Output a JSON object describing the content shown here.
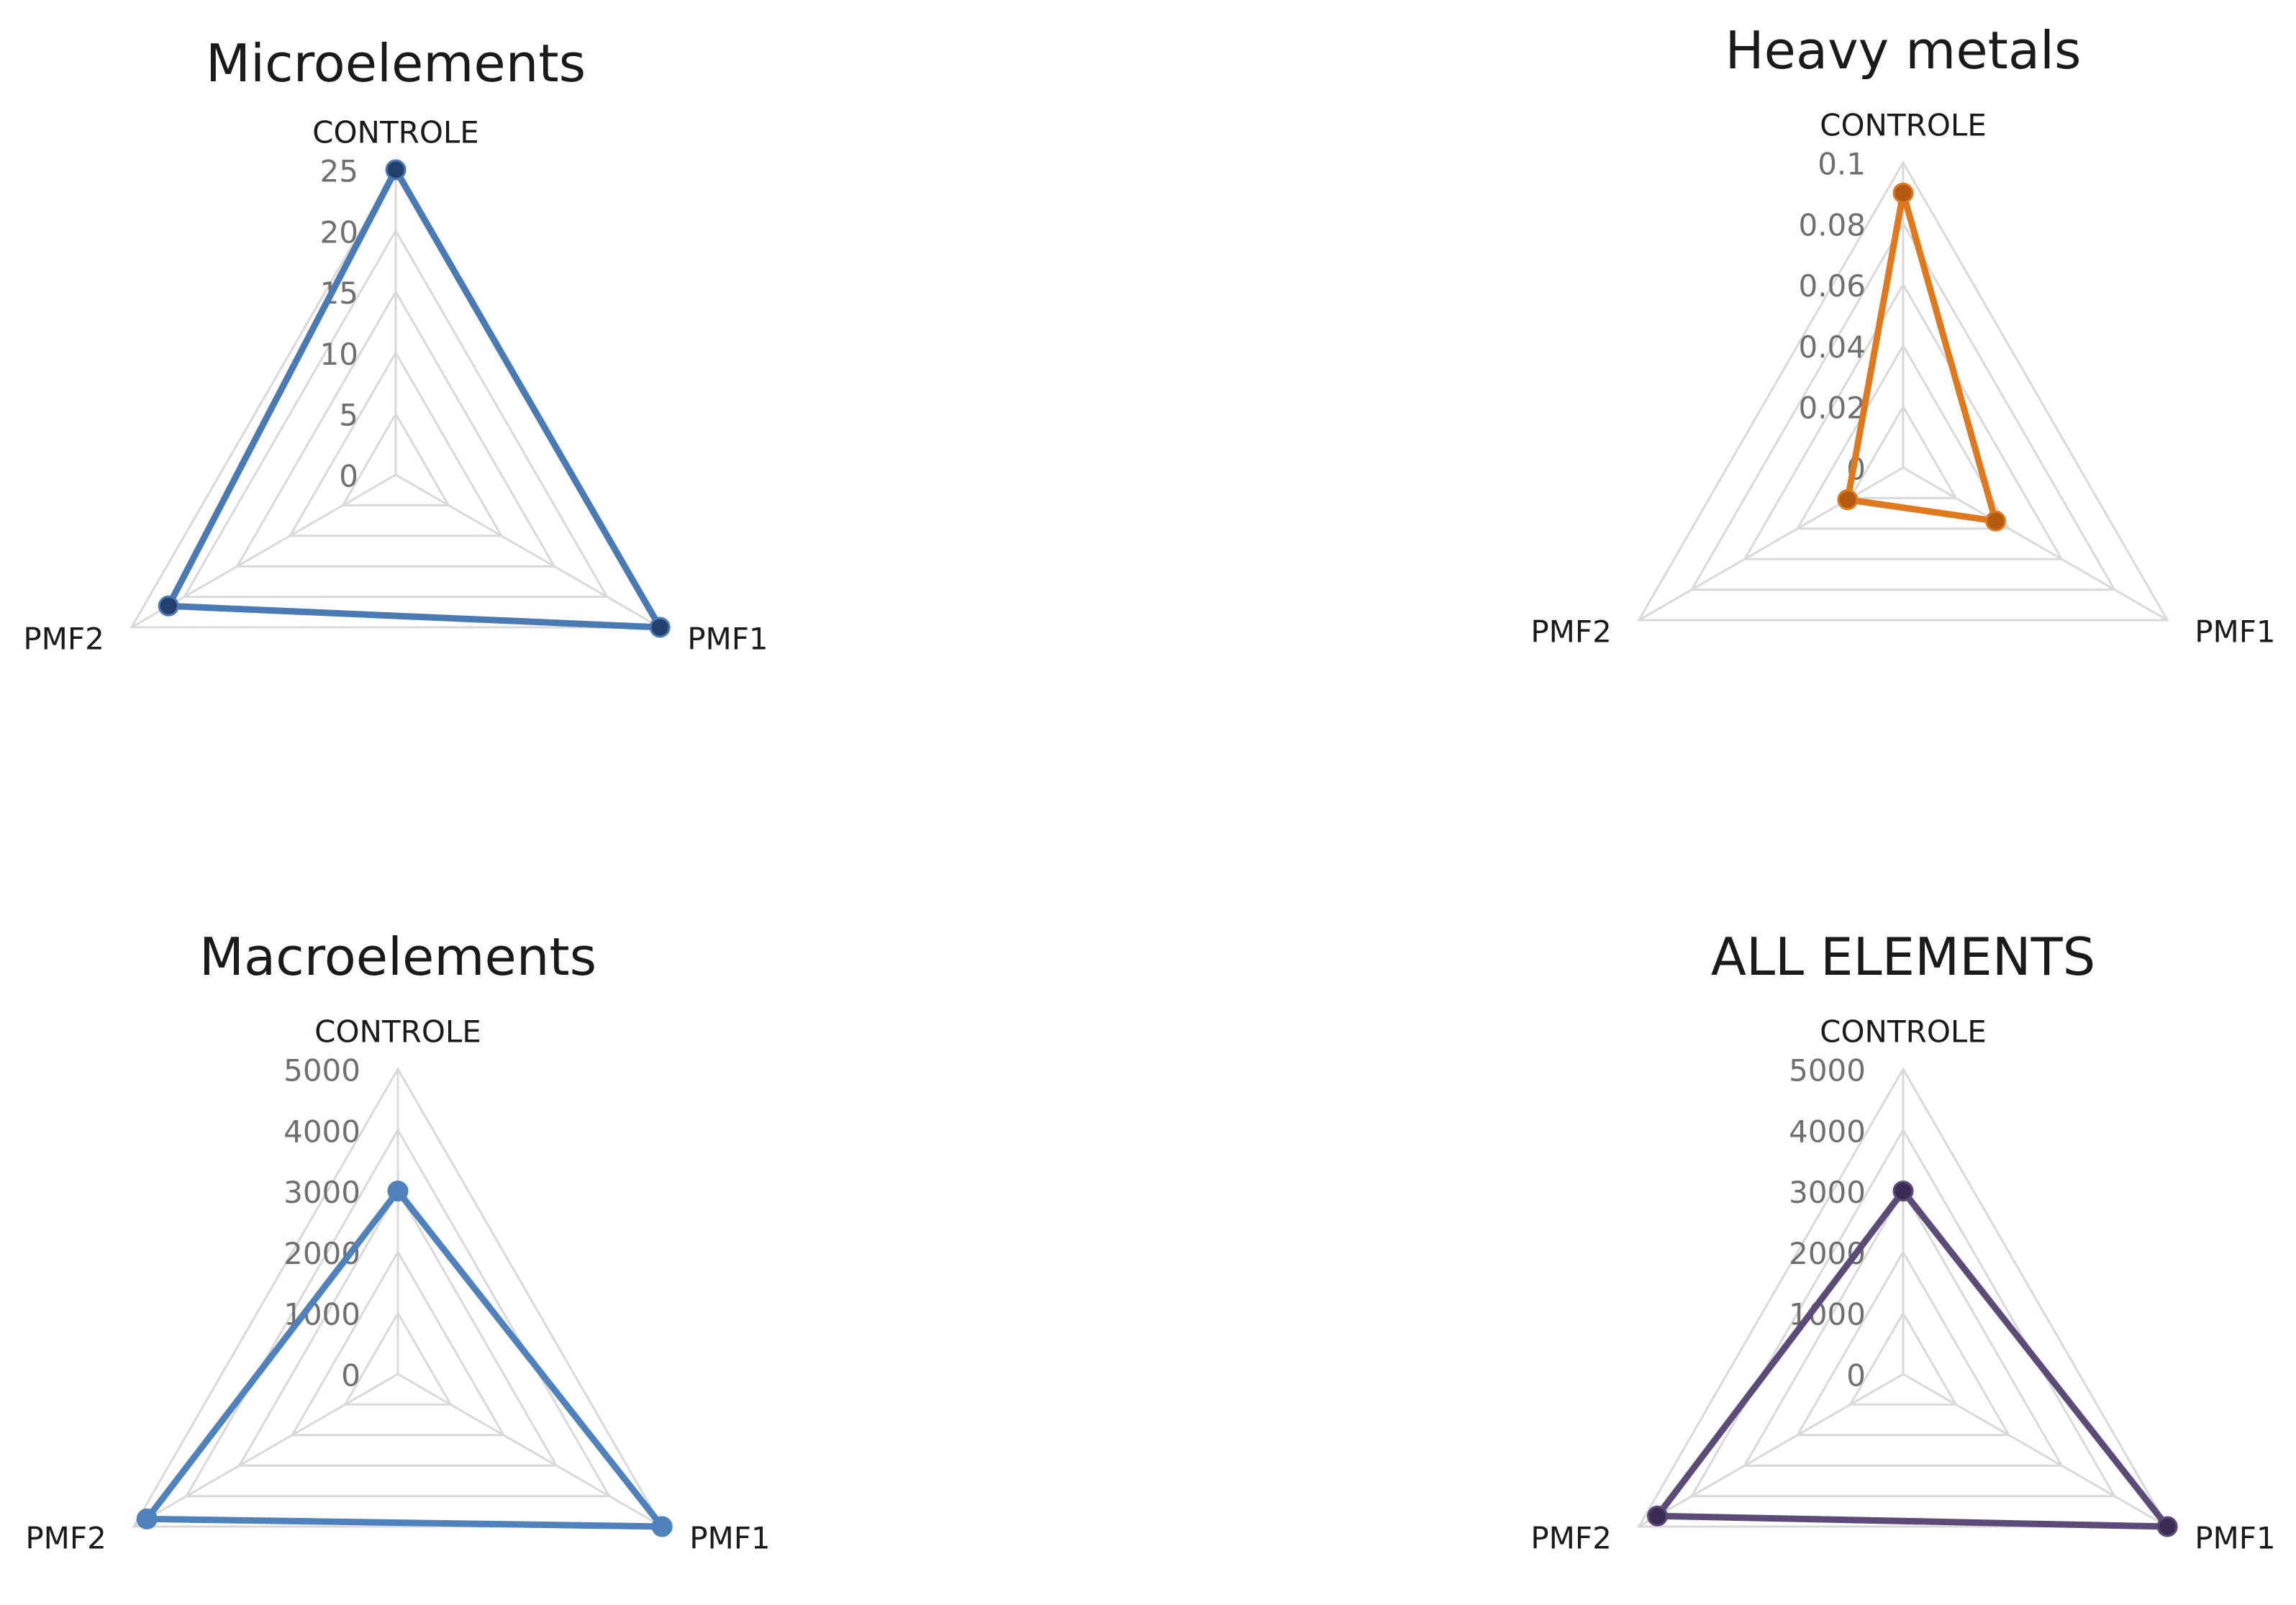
{
  "chart_data": [
    {
      "type": "radar",
      "title": "Microelements",
      "categories": [
        "CONTROLE",
        "PMF1",
        "PMF2"
      ],
      "ticks": [
        "0",
        "5",
        "10",
        "15",
        "20",
        "25"
      ],
      "rmax": 25,
      "series": [
        {
          "values": [
            25,
            25,
            21.5
          ],
          "color": "#4a7ab4",
          "marker": "#23406f"
        }
      ]
    },
    {
      "type": "radar",
      "title": "Heavy metals",
      "categories": [
        "CONTROLE",
        "PMF1",
        "PMF2"
      ],
      "ticks": [
        "0",
        "0.02",
        "0.04",
        "0.06",
        "0.08",
        "0.1"
      ],
      "rmax": 0.1,
      "series": [
        {
          "values": [
            0.09,
            0.035,
            0.021
          ],
          "color": "#e0791e",
          "marker": "#b35a10"
        }
      ]
    },
    {
      "type": "radar",
      "title": "Macroelements",
      "categories": [
        "CONTROLE",
        "PMF1",
        "PMF2"
      ],
      "ticks": [
        "0",
        "1000",
        "2000",
        "3000",
        "4000",
        "5000"
      ],
      "rmax": 5000,
      "series": [
        {
          "values": [
            3000,
            5000,
            4750
          ],
          "color": "#4f81bd",
          "marker": "#4f81bd"
        }
      ]
    },
    {
      "type": "radar",
      "title": "ALL ELEMENTS",
      "categories": [
        "CONTROLE",
        "PMF1",
        "PMF2"
      ],
      "ticks": [
        "0",
        "1000",
        "2000",
        "3000",
        "4000",
        "5000"
      ],
      "rmax": 5000,
      "series": [
        {
          "values": [
            3000,
            5000,
            4650
          ],
          "color": "#5c4a78",
          "marker": "#3a2c55"
        }
      ]
    }
  ]
}
